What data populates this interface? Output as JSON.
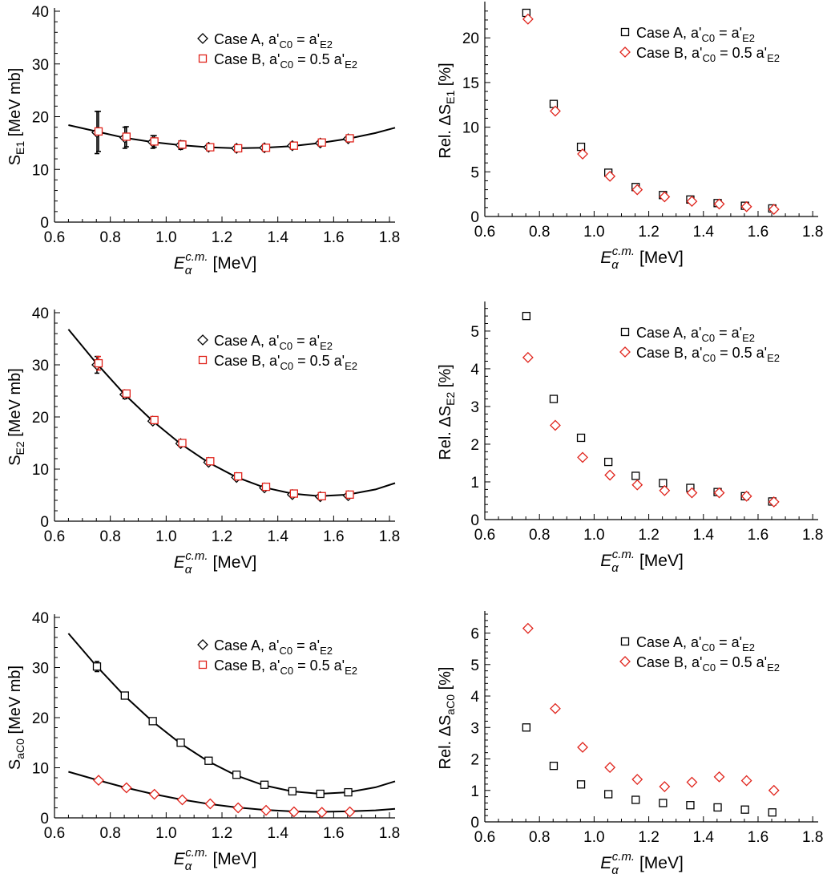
{
  "colors": {
    "axis": "#000000",
    "case_a": "#000000",
    "case_b": "#e0231b",
    "curve": "#000000"
  },
  "x_axis_label": {
    "main": "E",
    "sub": "α",
    "sup": "c.m.",
    "unit": " [MeV]"
  },
  "chart_data": [
    {
      "id": "S_E1",
      "type": "scatter",
      "ylabel": {
        "prefix": "S",
        "sub": "E1",
        "suffix": " [MeV mb]"
      },
      "xlim": [
        0.6,
        1.82
      ],
      "ylim": [
        0,
        40
      ],
      "xticks": [
        0.6,
        0.8,
        1.0,
        1.2,
        1.4,
        1.6,
        1.8
      ],
      "yticks": [
        0,
        10,
        20,
        30,
        40
      ],
      "xtick_labels": [
        "0.6",
        "0.8",
        "1.0",
        "1.2",
        "1.4",
        "1.6",
        "1.8"
      ],
      "ytick_labels": [
        "0",
        "10",
        "20",
        "30",
        "40"
      ],
      "legend": {
        "position": "top-center",
        "entries": [
          {
            "marker": "diamond",
            "color": "#000000",
            "parts": [
              [
                "Case A, a'",
                ""
              ],
              [
                "C0",
                "sub"
              ],
              [
                " = a'",
                ""
              ],
              [
                "E2",
                "sub"
              ]
            ]
          },
          {
            "marker": "square",
            "color": "#e0231b",
            "parts": [
              [
                "Case B, a'",
                ""
              ],
              [
                "C0",
                "sub"
              ],
              [
                " = 0.5 a'",
                ""
              ],
              [
                "E2",
                "sub"
              ]
            ]
          }
        ]
      },
      "x": [
        0.755,
        0.855,
        0.955,
        1.055,
        1.155,
        1.255,
        1.355,
        1.455,
        1.555,
        1.655
      ],
      "series": [
        {
          "name": "Case A",
          "marker": "diamond",
          "color": "#000000",
          "values": [
            17.0,
            16.0,
            15.2,
            14.6,
            14.2,
            14.0,
            14.1,
            14.5,
            15.0,
            15.8
          ],
          "errors": [
            4.0,
            2.0,
            1.2,
            0.8,
            0.5,
            0.4,
            0.4,
            0.4,
            0.5,
            0.5
          ]
        },
        {
          "name": "Case B",
          "marker": "square",
          "color": "#e0231b",
          "values": [
            17.2,
            16.2,
            15.3,
            14.7,
            14.2,
            14.0,
            14.1,
            14.5,
            15.1,
            15.9
          ],
          "errors": [
            3.8,
            1.9,
            1.1,
            0.7,
            0.5,
            0.4,
            0.4,
            0.4,
            0.5,
            0.5
          ]
        }
      ],
      "fit_curves": [
        {
          "x": [
            0.65,
            0.75,
            0.85,
            0.95,
            1.05,
            1.15,
            1.25,
            1.35,
            1.45,
            1.55,
            1.65,
            1.75,
            1.82
          ],
          "y": [
            18.4,
            17.2,
            16.0,
            15.2,
            14.6,
            14.2,
            14.0,
            14.1,
            14.4,
            15.0,
            15.8,
            16.9,
            17.9
          ]
        }
      ]
    },
    {
      "id": "rel_E1",
      "type": "scatter",
      "ylabel": {
        "prefix": "Rel. ΔS",
        "sub": "E1",
        "suffix": " [%]"
      },
      "xlim": [
        0.6,
        1.82
      ],
      "ylim": [
        0,
        23.7
      ],
      "xticks": [
        0.6,
        0.8,
        1.0,
        1.2,
        1.4,
        1.6,
        1.8
      ],
      "yticks": [
        0,
        5,
        10,
        15,
        20
      ],
      "xtick_labels": [
        "0.6",
        "0.8",
        "1.0",
        "1.2",
        "1.4",
        "1.6",
        "1.8"
      ],
      "ytick_labels": [
        "0",
        "5",
        "10",
        "15",
        "20"
      ],
      "legend": {
        "position": "top-right",
        "entries": [
          {
            "marker": "square",
            "color": "#000000",
            "parts": [
              [
                "Case A, a'",
                ""
              ],
              [
                "C0",
                "sub"
              ],
              [
                " = a'",
                ""
              ],
              [
                "E2",
                "sub"
              ]
            ]
          },
          {
            "marker": "diamond",
            "color": "#e0231b",
            "parts": [
              [
                "Case B, a'",
                ""
              ],
              [
                "C0",
                "sub"
              ],
              [
                " = 0.5 a'",
                ""
              ],
              [
                "E2",
                "sub"
              ]
            ]
          }
        ]
      },
      "x": [
        0.755,
        0.855,
        0.955,
        1.055,
        1.155,
        1.255,
        1.355,
        1.455,
        1.555,
        1.655
      ],
      "series": [
        {
          "name": "Case A",
          "marker": "square",
          "color": "#000000",
          "values": [
            22.8,
            12.6,
            7.8,
            4.9,
            3.3,
            2.4,
            1.9,
            1.5,
            1.2,
            0.9
          ]
        },
        {
          "name": "Case B",
          "marker": "diamond",
          "color": "#e0231b",
          "values": [
            22.1,
            11.8,
            7.0,
            4.5,
            3.0,
            2.2,
            1.7,
            1.4,
            1.1,
            0.8
          ]
        }
      ]
    },
    {
      "id": "S_E2",
      "type": "scatter",
      "ylabel": {
        "prefix": "S",
        "sub": "E2",
        "suffix": " [MeV mb]"
      },
      "xlim": [
        0.6,
        1.82
      ],
      "ylim": [
        0,
        40
      ],
      "xticks": [
        0.6,
        0.8,
        1.0,
        1.2,
        1.4,
        1.6,
        1.8
      ],
      "yticks": [
        0,
        10,
        20,
        30,
        40
      ],
      "xtick_labels": [
        "0.6",
        "0.8",
        "1.0",
        "1.2",
        "1.4",
        "1.6",
        "1.8"
      ],
      "ytick_labels": [
        "0",
        "10",
        "20",
        "30",
        "40"
      ],
      "legend": {
        "position": "top-center",
        "entries": [
          {
            "marker": "diamond",
            "color": "#000000",
            "parts": [
              [
                "Case A, a'",
                ""
              ],
              [
                "C0",
                "sub"
              ],
              [
                " = a'",
                ""
              ],
              [
                "E2",
                "sub"
              ]
            ]
          },
          {
            "marker": "square",
            "color": "#e0231b",
            "parts": [
              [
                "Case B, a'",
                ""
              ],
              [
                "C0",
                "sub"
              ],
              [
                " = 0.5 a'",
                ""
              ],
              [
                "E2",
                "sub"
              ]
            ]
          }
        ]
      },
      "x": [
        0.755,
        0.855,
        0.955,
        1.055,
        1.155,
        1.255,
        1.355,
        1.455,
        1.555,
        1.655
      ],
      "series": [
        {
          "name": "Case A",
          "marker": "diamond",
          "color": "#000000",
          "values": [
            30.0,
            24.3,
            19.2,
            14.9,
            11.3,
            8.4,
            6.4,
            5.1,
            4.7,
            4.9
          ],
          "errors": [
            1.6,
            0.8,
            0.4,
            0.3,
            0.2,
            0.1,
            0.1,
            0.05,
            0.05,
            0.05
          ]
        },
        {
          "name": "Case B",
          "marker": "square",
          "color": "#e0231b",
          "values": [
            30.3,
            24.5,
            19.4,
            15.0,
            11.5,
            8.6,
            6.6,
            5.3,
            4.8,
            5.1
          ],
          "errors": [
            1.3,
            0.6,
            0.3,
            0.2,
            0.1,
            0.1,
            0.05,
            0.05,
            0.05,
            0.05
          ]
        }
      ],
      "fit_curves": [
        {
          "x": [
            0.65,
            0.75,
            0.85,
            0.95,
            1.05,
            1.15,
            1.25,
            1.35,
            1.45,
            1.55,
            1.65,
            1.75,
            1.82
          ],
          "y": [
            36.8,
            30.3,
            24.4,
            19.3,
            14.9,
            11.3,
            8.5,
            6.5,
            5.3,
            4.8,
            5.1,
            6.1,
            7.3
          ]
        }
      ]
    },
    {
      "id": "rel_E2",
      "type": "scatter",
      "ylabel": {
        "prefix": "Rel. ΔS",
        "sub": "E2",
        "suffix": " [%]"
      },
      "xlim": [
        0.6,
        1.82
      ],
      "ylim": [
        0,
        5.7
      ],
      "xticks": [
        0.6,
        0.8,
        1.0,
        1.2,
        1.4,
        1.6,
        1.8
      ],
      "yticks": [
        0,
        1,
        2,
        3,
        4,
        5
      ],
      "xtick_labels": [
        "0.6",
        "0.8",
        "1.0",
        "1.2",
        "1.4",
        "1.6",
        "1.8"
      ],
      "ytick_labels": [
        "0",
        "1",
        "2",
        "3",
        "4",
        "5"
      ],
      "legend": {
        "position": "top-right",
        "entries": [
          {
            "marker": "square",
            "color": "#000000",
            "parts": [
              [
                "Case A, a'",
                ""
              ],
              [
                "C0",
                "sub"
              ],
              [
                " = a'",
                ""
              ],
              [
                "E2",
                "sub"
              ]
            ]
          },
          {
            "marker": "diamond",
            "color": "#e0231b",
            "parts": [
              [
                "Case B, a'",
                ""
              ],
              [
                "C0",
                "sub"
              ],
              [
                " = 0.5 a'",
                ""
              ],
              [
                "E2",
                "sub"
              ]
            ]
          }
        ]
      },
      "x": [
        0.755,
        0.855,
        0.955,
        1.055,
        1.155,
        1.255,
        1.355,
        1.455,
        1.555,
        1.655
      ],
      "series": [
        {
          "name": "Case A",
          "marker": "square",
          "color": "#000000",
          "values": [
            5.4,
            3.2,
            2.17,
            1.53,
            1.16,
            0.97,
            0.84,
            0.73,
            0.62,
            0.48
          ]
        },
        {
          "name": "Case B",
          "marker": "diamond",
          "color": "#e0231b",
          "values": [
            4.3,
            2.5,
            1.65,
            1.18,
            0.92,
            0.77,
            0.71,
            0.71,
            0.62,
            0.47
          ]
        }
      ]
    },
    {
      "id": "S_aC0",
      "type": "scatter",
      "ylabel": {
        "prefix": "S",
        "sub": "aC0",
        "suffix": " [MeV mb]"
      },
      "xlim": [
        0.6,
        1.82
      ],
      "ylim": [
        0,
        40
      ],
      "xticks": [
        0.6,
        0.8,
        1.0,
        1.2,
        1.4,
        1.6,
        1.8
      ],
      "yticks": [
        0,
        10,
        20,
        30,
        40
      ],
      "xtick_labels": [
        "0.6",
        "0.8",
        "1.0",
        "1.2",
        "1.4",
        "1.6",
        "1.8"
      ],
      "ytick_labels": [
        "0",
        "10",
        "20",
        "30",
        "40"
      ],
      "legend": {
        "position": "top-center",
        "entries": [
          {
            "marker": "diamond",
            "color": "#000000",
            "parts": [
              [
                "Case A, a'",
                ""
              ],
              [
                "C0",
                "sub"
              ],
              [
                " = a'",
                ""
              ],
              [
                "E2",
                "sub"
              ]
            ]
          },
          {
            "marker": "square",
            "color": "#e0231b",
            "parts": [
              [
                "Case B, a'",
                ""
              ],
              [
                "C0",
                "sub"
              ],
              [
                " = 0.5 a'",
                ""
              ],
              [
                "E2",
                "sub"
              ]
            ]
          }
        ]
      },
      "x": [
        0.755,
        0.855,
        0.955,
        1.055,
        1.155,
        1.255,
        1.355,
        1.455,
        1.555,
        1.655
      ],
      "series": [
        {
          "name": "Case A",
          "marker": "square",
          "color": "#000000",
          "values": [
            30.2,
            24.4,
            19.3,
            15.0,
            11.4,
            8.6,
            6.6,
            5.3,
            4.8,
            5.1
          ],
          "errors": [
            1.0,
            0.5,
            0.3,
            0.2,
            0.1,
            0.1,
            0.05,
            0.05,
            0.05,
            0.05
          ]
        },
        {
          "name": "Case B",
          "marker": "diamond",
          "color": "#e0231b",
          "values": [
            7.5,
            6.0,
            4.7,
            3.6,
            2.8,
            2.0,
            1.5,
            1.2,
            1.1,
            1.2
          ],
          "errors": [
            0.5,
            0.2,
            0.1,
            0.05,
            0.05,
            0.05,
            0.05,
            0.05,
            0.05,
            0.05
          ]
        }
      ],
      "fit_curves": [
        {
          "x": [
            0.65,
            0.75,
            0.85,
            0.95,
            1.05,
            1.15,
            1.25,
            1.35,
            1.45,
            1.55,
            1.65,
            1.75,
            1.82
          ],
          "y": [
            36.8,
            30.3,
            24.4,
            19.3,
            14.9,
            11.3,
            8.5,
            6.5,
            5.3,
            4.8,
            5.1,
            6.1,
            7.3
          ]
        },
        {
          "x": [
            0.65,
            0.75,
            0.85,
            0.95,
            1.05,
            1.15,
            1.25,
            1.35,
            1.45,
            1.55,
            1.65,
            1.75,
            1.82
          ],
          "y": [
            9.2,
            7.6,
            6.1,
            4.8,
            3.7,
            2.8,
            2.1,
            1.6,
            1.3,
            1.2,
            1.3,
            1.5,
            1.8
          ]
        }
      ]
    },
    {
      "id": "rel_aC0",
      "type": "scatter",
      "ylabel": {
        "prefix": "Rel. ΔS",
        "sub": "aC0",
        "suffix": " [%]"
      },
      "xlim": [
        0.6,
        1.82
      ],
      "ylim": [
        0,
        6.6
      ],
      "xticks": [
        0.6,
        0.8,
        1.0,
        1.2,
        1.4,
        1.6,
        1.8
      ],
      "yticks": [
        0,
        1,
        2,
        3,
        4,
        5,
        6
      ],
      "xtick_labels": [
        "0.6",
        "0.8",
        "1.0",
        "1.2",
        "1.4",
        "1.6",
        "1.8"
      ],
      "ytick_labels": [
        "0",
        "1",
        "2",
        "3",
        "4",
        "5",
        "6"
      ],
      "legend": {
        "position": "top-right",
        "entries": [
          {
            "marker": "square",
            "color": "#000000",
            "parts": [
              [
                "Case A, a'",
                ""
              ],
              [
                "C0",
                "sub"
              ],
              [
                " = a'",
                ""
              ],
              [
                "E2",
                "sub"
              ]
            ]
          },
          {
            "marker": "diamond",
            "color": "#e0231b",
            "parts": [
              [
                "Case B, a'",
                ""
              ],
              [
                "C0",
                "sub"
              ],
              [
                " = 0.5 a'",
                ""
              ],
              [
                "E2",
                "sub"
              ]
            ]
          }
        ]
      },
      "x": [
        0.755,
        0.855,
        0.955,
        1.055,
        1.155,
        1.255,
        1.355,
        1.455,
        1.555,
        1.655
      ],
      "series": [
        {
          "name": "Case A",
          "marker": "square",
          "color": "#000000",
          "values": [
            3.0,
            1.78,
            1.19,
            0.88,
            0.7,
            0.6,
            0.53,
            0.46,
            0.39,
            0.3
          ]
        },
        {
          "name": "Case B",
          "marker": "diamond",
          "color": "#e0231b",
          "values": [
            6.15,
            3.6,
            2.37,
            1.73,
            1.35,
            1.12,
            1.26,
            1.43,
            1.31,
            1.0
          ]
        }
      ]
    }
  ]
}
